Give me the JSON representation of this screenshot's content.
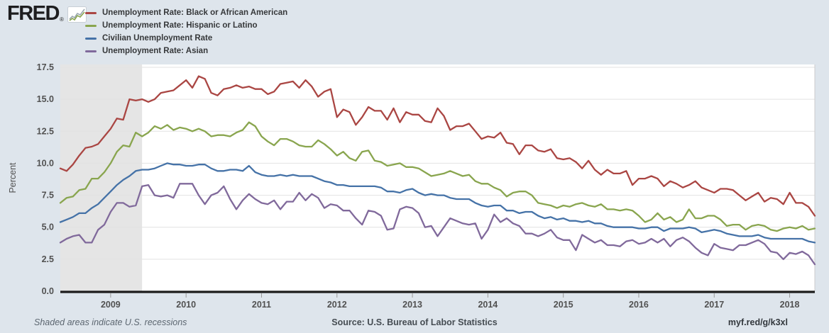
{
  "header": {
    "logo_text": "FRED",
    "logo_registered": "®"
  },
  "footer": {
    "note": "Shaded areas indicate U.S. recessions",
    "source": "Source: U.S. Bureau of Labor Statistics",
    "link": "myf.red/g/k3xl"
  },
  "colors": {
    "background": "#dee5ec",
    "plot_background": "#ffffff",
    "recession_shading": "#e5e5e5",
    "gridline": "#e2e2e2",
    "axis_line": "#1c1c1c",
    "tick": "#999999",
    "axis_label": "#515151"
  },
  "chart_data": {
    "type": "line",
    "title": "",
    "xlabel": "",
    "ylabel": "Percent",
    "frequency": "monthly",
    "x_start": "2008-05",
    "x_end": "2018-05",
    "ylim": [
      0,
      17.5
    ],
    "y_ticks": [
      "0.0",
      "2.5",
      "5.0",
      "7.5",
      "10.0",
      "12.5",
      "15.0",
      "17.5"
    ],
    "x_ticks": [
      "2009",
      "2010",
      "2011",
      "2012",
      "2013",
      "2014",
      "2015",
      "2016",
      "2017",
      "2018"
    ],
    "grid": true,
    "legend_position": "top-left",
    "recession_shading": {
      "start": "2008-05",
      "end": "2009-06",
      "note": "U.S. recession band at left of plot"
    },
    "series": [
      {
        "name": "Unemployment Rate: Black or African American",
        "color": "#AA4643",
        "values": [
          9.6,
          9.4,
          9.9,
          10.6,
          11.2,
          11.3,
          11.5,
          12.1,
          12.7,
          13.5,
          13.4,
          15.0,
          14.9,
          15.0,
          14.8,
          15.0,
          15.5,
          15.6,
          15.7,
          16.1,
          16.5,
          15.9,
          16.8,
          16.6,
          15.5,
          15.3,
          15.8,
          15.9,
          16.1,
          15.9,
          16.0,
          15.8,
          15.8,
          15.4,
          15.6,
          16.2,
          16.3,
          16.4,
          15.9,
          16.5,
          16.0,
          15.2,
          15.6,
          15.8,
          13.6,
          14.2,
          14.0,
          13.0,
          13.6,
          14.4,
          14.1,
          14.1,
          13.4,
          14.3,
          13.2,
          14.0,
          13.8,
          13.8,
          13.3,
          13.2,
          14.3,
          13.7,
          12.6,
          12.9,
          12.9,
          13.1,
          12.5,
          11.9,
          12.1,
          12.0,
          12.4,
          11.6,
          11.5,
          10.7,
          11.4,
          11.4,
          11.0,
          10.9,
          11.1,
          10.4,
          10.3,
          10.4,
          10.1,
          9.6,
          10.2,
          9.5,
          9.1,
          9.5,
          9.2,
          9.2,
          9.4,
          8.3,
          8.8,
          8.8,
          9.0,
          8.8,
          8.2,
          8.6,
          8.4,
          8.1,
          8.3,
          8.6,
          8.1,
          7.9,
          7.7,
          8.0,
          8.0,
          7.9,
          7.5,
          7.1,
          7.4,
          7.7,
          7.0,
          7.3,
          7.2,
          6.8,
          7.7,
          6.9,
          6.9,
          6.6,
          5.9
        ]
      },
      {
        "name": "Unemployment Rate: Hispanic or Latino",
        "color": "#89A54E",
        "values": [
          6.9,
          7.3,
          7.4,
          7.9,
          8.0,
          8.8,
          8.8,
          9.3,
          10.0,
          10.9,
          11.4,
          11.3,
          12.4,
          12.1,
          12.4,
          12.9,
          12.7,
          13.0,
          12.6,
          12.8,
          12.7,
          12.5,
          12.7,
          12.5,
          12.1,
          12.2,
          12.2,
          12.1,
          12.4,
          12.6,
          13.2,
          12.9,
          12.1,
          11.7,
          11.4,
          11.9,
          11.9,
          11.7,
          11.4,
          11.3,
          11.3,
          11.8,
          11.5,
          11.1,
          10.6,
          10.9,
          10.4,
          10.2,
          10.9,
          11.0,
          10.2,
          10.1,
          9.8,
          9.9,
          10.0,
          9.7,
          9.7,
          9.6,
          9.3,
          9.0,
          9.1,
          9.2,
          9.4,
          9.2,
          9.0,
          9.1,
          8.6,
          8.4,
          8.4,
          8.1,
          7.9,
          7.4,
          7.7,
          7.8,
          7.8,
          7.5,
          6.9,
          6.8,
          6.7,
          6.5,
          6.7,
          6.6,
          6.8,
          6.9,
          6.7,
          6.6,
          6.8,
          6.4,
          6.4,
          6.3,
          6.4,
          6.3,
          5.9,
          5.4,
          5.6,
          6.1,
          5.6,
          5.8,
          5.4,
          5.6,
          6.4,
          5.7,
          5.7,
          5.9,
          5.9,
          5.6,
          5.1,
          5.2,
          5.2,
          4.8,
          5.1,
          5.2,
          5.1,
          4.8,
          4.7,
          4.9,
          5.0,
          4.9,
          5.1,
          4.8,
          4.9
        ]
      },
      {
        "name": "Civilian Unemployment Rate",
        "color": "#4572A7",
        "values": [
          5.4,
          5.6,
          5.8,
          6.1,
          6.1,
          6.5,
          6.8,
          7.3,
          7.8,
          8.3,
          8.7,
          9.0,
          9.4,
          9.5,
          9.5,
          9.6,
          9.8,
          10.0,
          9.9,
          9.9,
          9.8,
          9.8,
          9.9,
          9.9,
          9.6,
          9.4,
          9.4,
          9.5,
          9.5,
          9.4,
          9.8,
          9.3,
          9.1,
          9.0,
          9.0,
          9.1,
          9.0,
          9.1,
          9.0,
          9.0,
          9.0,
          8.8,
          8.6,
          8.5,
          8.3,
          8.3,
          8.2,
          8.2,
          8.2,
          8.2,
          8.2,
          8.1,
          7.8,
          7.8,
          7.7,
          7.9,
          8.0,
          7.7,
          7.5,
          7.6,
          7.5,
          7.5,
          7.3,
          7.2,
          7.2,
          7.2,
          6.9,
          6.7,
          6.6,
          6.7,
          6.7,
          6.3,
          6.3,
          6.1,
          6.2,
          6.2,
          5.9,
          5.7,
          5.8,
          5.6,
          5.7,
          5.5,
          5.5,
          5.4,
          5.5,
          5.3,
          5.3,
          5.1,
          5.0,
          5.0,
          5.0,
          5.0,
          4.9,
          4.9,
          5.0,
          5.0,
          4.7,
          4.9,
          4.9,
          4.9,
          5.0,
          4.9,
          4.6,
          4.7,
          4.8,
          4.7,
          4.5,
          4.4,
          4.3,
          4.3,
          4.3,
          4.4,
          4.2,
          4.1,
          4.1,
          4.1,
          4.1,
          4.1,
          4.1,
          3.9,
          3.8
        ]
      },
      {
        "name": "Unemployment Rate: Asian",
        "color": "#80699B",
        "values": [
          3.8,
          4.1,
          4.3,
          4.4,
          3.8,
          3.8,
          4.8,
          5.2,
          6.2,
          6.9,
          6.9,
          6.6,
          6.7,
          8.2,
          8.3,
          7.5,
          7.4,
          7.5,
          7.3,
          8.4,
          8.4,
          8.4,
          7.5,
          6.8,
          7.5,
          7.7,
          8.2,
          7.2,
          6.4,
          7.1,
          7.6,
          7.2,
          6.9,
          6.8,
          7.1,
          6.4,
          7.0,
          7.0,
          7.7,
          7.1,
          7.6,
          7.3,
          6.5,
          6.8,
          6.7,
          6.3,
          6.3,
          5.7,
          5.2,
          6.3,
          6.2,
          5.9,
          4.8,
          4.9,
          6.4,
          6.6,
          6.5,
          6.1,
          5.0,
          5.1,
          4.3,
          5.0,
          5.7,
          5.5,
          5.3,
          5.2,
          5.3,
          4.1,
          4.8,
          6.0,
          5.4,
          5.7,
          5.3,
          5.1,
          4.5,
          4.5,
          4.3,
          4.5,
          4.8,
          4.2,
          4.0,
          4.0,
          3.2,
          4.4,
          4.1,
          3.8,
          4.0,
          3.6,
          3.6,
          3.5,
          3.9,
          4.0,
          3.7,
          3.8,
          4.1,
          3.8,
          4.1,
          3.5,
          4.0,
          4.2,
          3.9,
          3.4,
          3.0,
          2.8,
          3.7,
          3.4,
          3.3,
          3.2,
          3.6,
          3.6,
          3.8,
          4.0,
          3.7,
          3.1,
          3.0,
          2.5,
          3.0,
          2.9,
          3.1,
          2.8,
          2.1
        ]
      }
    ]
  }
}
